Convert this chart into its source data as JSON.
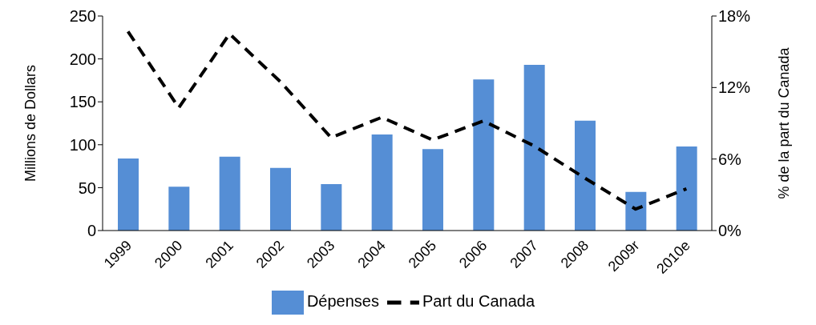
{
  "chart_data": {
    "type": "bar",
    "categories": [
      "1999",
      "2000",
      "2001",
      "2002",
      "2003",
      "2004",
      "2005",
      "2006",
      "2007",
      "2008",
      "2009r",
      "2010e"
    ],
    "series": [
      {
        "name": "Dépenses",
        "color": "#558ed5",
        "values": [
          84,
          51,
          86,
          73,
          54,
          112,
          95,
          176,
          193,
          128,
          45,
          98
        ]
      },
      {
        "name": "Part du Canada",
        "type": "line",
        "axis": "y2",
        "color": "#000000",
        "line_style": "dashed",
        "marker": "none",
        "values": [
          16.7,
          10.3,
          16.5,
          12.5,
          7.8,
          9.5,
          7.6,
          9.2,
          7.1,
          4.4,
          1.8,
          3.5
        ]
      }
    ],
    "ylabel": "Millions de Dollars",
    "y2label": "% de la part du Canada",
    "ylim": [
      0,
      250
    ],
    "yticks": [
      0,
      50,
      100,
      150,
      200,
      250
    ],
    "y2lim": [
      0,
      18
    ],
    "y2ticks": [
      {
        "value": 0,
        "label": "0%"
      },
      {
        "value": 6,
        "label": "6%"
      },
      {
        "value": 12,
        "label": "12%"
      },
      {
        "value": 18,
        "label": "18%"
      }
    ],
    "legend": "bottom"
  }
}
